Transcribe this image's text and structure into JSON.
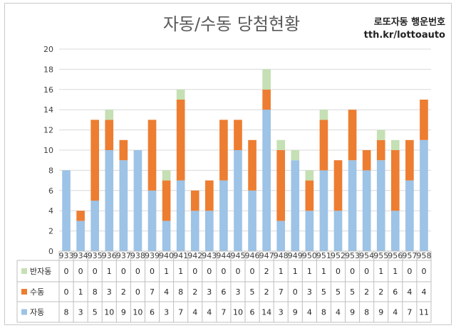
{
  "chart_data": {
    "type": "bar",
    "stacked": true,
    "title": "자동/수동 당첨현황",
    "brand": {
      "name": "로또자동 행운번호",
      "url": "tth.kr/lottoauto"
    },
    "ylim": [
      0,
      20
    ],
    "yticks": [
      "0",
      "2",
      "4",
      "6",
      "8",
      "10",
      "12",
      "14",
      "16",
      "18",
      "20"
    ],
    "categories": [
      "933",
      "934",
      "935",
      "936",
      "937",
      "938",
      "939",
      "940",
      "941",
      "942",
      "943",
      "944",
      "945",
      "946",
      "947",
      "948",
      "949",
      "950",
      "951",
      "952",
      "953",
      "954",
      "955",
      "956",
      "957",
      "958"
    ],
    "series": [
      {
        "name": "자동",
        "color": "#9dc3e6",
        "values": [
          8,
          3,
          5,
          10,
          9,
          10,
          6,
          3,
          7,
          4,
          4,
          7,
          10,
          6,
          14,
          3,
          9,
          4,
          8,
          4,
          9,
          8,
          9,
          4,
          7,
          11
        ]
      },
      {
        "name": "수동",
        "color": "#ed7d31",
        "values": [
          0,
          1,
          8,
          3,
          2,
          0,
          7,
          4,
          8,
          2,
          3,
          6,
          3,
          5,
          2,
          7,
          0,
          3,
          5,
          5,
          5,
          2,
          2,
          6,
          4,
          4
        ]
      },
      {
        "name": "반자동",
        "color": "#c5e0b4",
        "values": [
          0,
          0,
          0,
          1,
          0,
          0,
          0,
          1,
          1,
          0,
          0,
          0,
          0,
          0,
          2,
          1,
          1,
          1,
          1,
          0,
          0,
          0,
          1,
          1,
          0,
          0
        ]
      }
    ],
    "table_order": [
      "반자동",
      "수동",
      "자동"
    ],
    "grid": true,
    "legend": "data-table-left"
  }
}
